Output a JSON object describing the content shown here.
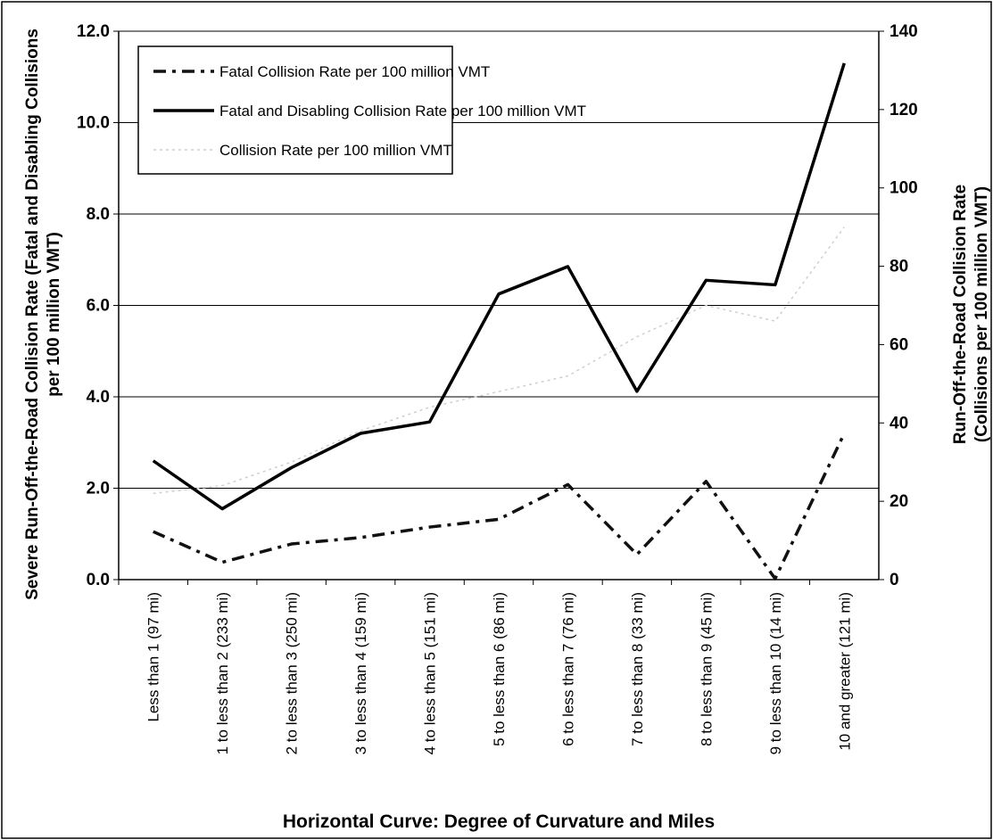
{
  "chart_data": {
    "type": "line",
    "x_label": "Horizontal Curve: Degree of Curvature and Miles",
    "y_label": [
      "Severe Run-Off-the-Road Collision Rate (Fatal and Disabling Collisions",
      "per 100 million VMT)"
    ],
    "y2_label": [
      "Run-Off-the-Road Collision Rate",
      "(Collisions per 100 million VMT)"
    ],
    "categories": [
      "Less than 1 (97 mi)",
      "1 to less than 2 (233 mi)",
      "2 to less than 3 (250 mi)",
      "3 to less than 4 (159 mi)",
      "4 to less than 5 (151 mi)",
      "5 to less than 6 (86 mi)",
      "6 to less than 7 (76 mi)",
      "7 to less than 8 (33 mi)",
      "8 to less than 9 (45 mi)",
      "9 to less than 10 (14 mi)",
      "10 and greater (121 mi)"
    ],
    "series": [
      {
        "name": "Fatal Collision Rate per 100 million VMT",
        "color": "#111111",
        "line_style": "dash-dot",
        "line_width": 3.5,
        "values": [
          1.05,
          0.38,
          0.78,
          0.92,
          1.15,
          1.32,
          2.08,
          0.55,
          2.15,
          0.02,
          3.2
        ]
      },
      {
        "name": "Fatal and Disabling Collision Rate per 100 million VMT",
        "color": "#000000",
        "line_style": "solid",
        "line_width": 3.5,
        "values": [
          2.6,
          1.55,
          2.45,
          3.2,
          3.45,
          6.25,
          6.85,
          4.12,
          6.55,
          6.45,
          11.3
        ]
      },
      {
        "name": "Collision Rate per 100 million VMT",
        "color": "#cfcfcf",
        "line_style": "dotted",
        "line_width": 1.5,
        "axis": "y2",
        "values": [
          22,
          24,
          30,
          38,
          44,
          48,
          52,
          62,
          70,
          66,
          90
        ]
      }
    ],
    "ylim": [
      0,
      12
    ],
    "yticks": [
      {
        "value": 0,
        "label": "0.0"
      },
      {
        "value": 2,
        "label": "2.0"
      },
      {
        "value": 4,
        "label": "4.0"
      },
      {
        "value": 6,
        "label": "6.0"
      },
      {
        "value": 8,
        "label": "8.0"
      },
      {
        "value": 10,
        "label": "10.0"
      },
      {
        "value": 12,
        "label": "12.0"
      }
    ],
    "y2lim": [
      0,
      140
    ],
    "y2ticks": [
      0,
      20,
      40,
      60,
      80,
      100,
      120,
      140
    ],
    "grid": true,
    "legend": "upper left"
  }
}
